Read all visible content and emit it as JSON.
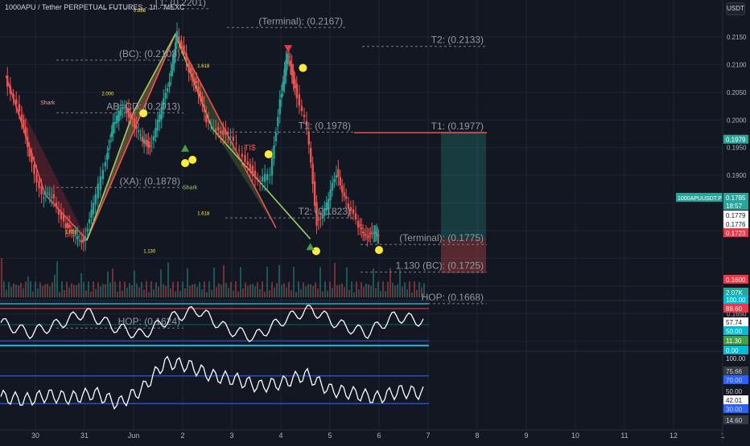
{
  "header": {
    "symbol_title": "1000APU / Tether PERPETUAL FUTURES · 1h · MEXC",
    "currency_label": "USDT"
  },
  "colors": {
    "bg": "#131722",
    "grid": "#1f2433",
    "axis_text": "#b2b5be",
    "up": "#26a69a",
    "down": "#ef5350",
    "harmonic_line_bull": "#9ccc65",
    "harmonic_line_bear": "#ef5350",
    "level_dash": "#787b86",
    "pattern_fill_red": "#f23645",
    "pattern_fill_green": "#8bc34a",
    "rsi_line": "#ffffff",
    "band_cyan": "#00bcd4",
    "band_red": "#f23645"
  },
  "chart_data": [
    {
      "type": "candlestick",
      "title": "1000APU / Tether PERPETUAL FUTURES · 1h · MEXC",
      "x_ticks": [
        "30",
        "31",
        "Jun",
        "2",
        "3",
        "4",
        "5",
        "6",
        "7",
        "8",
        "9",
        "10",
        "11",
        "12",
        "1"
      ],
      "y_ticks": [
        0.215,
        0.21,
        0.205,
        0.2,
        0.195,
        0.19,
        0.185,
        0.18,
        0.165
      ],
      "ylim": [
        0.158,
        0.2215
      ],
      "price_path": [
        [
          29.4,
          0.208
        ],
        [
          29.7,
          0.201
        ],
        [
          29.9,
          0.194
        ],
        [
          30.15,
          0.186
        ],
        [
          30.35,
          0.1865
        ],
        [
          30.6,
          0.1815
        ],
        [
          30.8,
          0.179
        ],
        [
          31.0,
          0.1783
        ],
        [
          31.2,
          0.1845
        ],
        [
          31.45,
          0.193
        ],
        [
          31.6,
          0.199
        ],
        [
          31.8,
          0.2025
        ],
        [
          32.0,
          0.2
        ],
        [
          32.2,
          0.196
        ],
        [
          32.35,
          0.1955
        ],
        [
          32.55,
          0.2005
        ],
        [
          32.75,
          0.2075
        ],
        [
          32.9,
          0.2155
        ],
        [
          33.15,
          0.209
        ],
        [
          33.3,
          0.2065
        ],
        [
          33.5,
          0.1995
        ],
        [
          33.75,
          0.1985
        ],
        [
          34.0,
          0.1965
        ],
        [
          34.3,
          0.193
        ],
        [
          34.55,
          0.1885
        ],
        [
          34.8,
          0.1905
        ],
        [
          35.0,
          0.2035
        ],
        [
          35.15,
          0.212
        ],
        [
          35.3,
          0.206
        ],
        [
          35.55,
          0.1985
        ],
        [
          35.75,
          0.1815
        ],
        [
          35.95,
          0.1845
        ],
        [
          36.15,
          0.1905
        ],
        [
          36.35,
          0.1855
        ],
        [
          36.6,
          0.1805
        ],
        [
          36.75,
          0.1795
        ],
        [
          36.9,
          0.179
        ],
        [
          37.0,
          0.1798
        ]
      ],
      "harmonics": [
        {
          "name": "Shark",
          "points": [
            [
              29.4,
              0.208
            ],
            [
              30.2,
              0.1865
            ],
            [
              31.05,
              0.1783
            ],
            [
              32.85,
              0.2155
            ],
            [
              34.9,
              0.1805
            ]
          ]
        },
        {
          "name": "Shark",
          "points": [
            [
              30.2,
              0.1865
            ],
            [
              31.05,
              0.1783
            ],
            [
              32.0,
              0.2015
            ],
            [
              33.15,
              0.2165
            ],
            [
              35.6,
              0.1785
            ]
          ]
        }
      ],
      "levels": [
        {
          "label": "T1: (0.2201)",
          "value": 0.2201
        },
        {
          "label": "(Terminal): (0.2167)",
          "value": 0.2167
        },
        {
          "label": "(BC): (0.2108)",
          "value": 0.2108
        },
        {
          "label": "T2: (0.2133)",
          "value": 0.2133
        },
        {
          "label": "AB=CD: (0.2013)",
          "value": 0.2013
        },
        {
          "label": "T1: (0.1978)",
          "value": 0.1978
        },
        {
          "label": "T1: (0.1977)",
          "value": 0.1977
        },
        {
          "label": "(XA): (0.1878)",
          "value": 0.1878
        },
        {
          "label": "T2: (0.1823)",
          "value": 0.1823
        },
        {
          "label": "(Terminal): (0.1775)",
          "value": 0.1775
        },
        {
          "label": "1.130 (BC): (0.1725)",
          "value": 0.1725
        },
        {
          "label": "HOP: (0.1668)",
          "value": 0.1668
        },
        {
          "label": "HOP: (0.1624)",
          "value": 0.1624
        }
      ],
      "ratio_labels": [
        "0.886",
        "2.000",
        "1.618",
        "1.618",
        "1.618",
        "1.130"
      ],
      "pattern_labels": [
        "Shark",
        "Shark",
        "TI$"
      ],
      "position": {
        "entry": 0.1785,
        "target": 0.1979,
        "stop": 0.1723
      },
      "price_badges": [
        {
          "text": "0.2150",
          "kind": "tick"
        },
        {
          "text": "0.2100",
          "kind": "tick"
        },
        {
          "text": "0.2050",
          "kind": "tick"
        },
        {
          "text": "0.2000",
          "kind": "tick"
        },
        {
          "text": "0.1979",
          "kind": "green"
        },
        {
          "text": "0.1950",
          "kind": "tick"
        },
        {
          "text": "0.1900",
          "kind": "tick"
        },
        {
          "text": "0.1850",
          "kind": "tick"
        },
        {
          "text": "0.1800",
          "kind": "tick"
        },
        {
          "text": "1000APUUSDT.P",
          "kind": "sym"
        },
        {
          "text": "0.1785",
          "kind": "green"
        },
        {
          "text": "18:57",
          "kind": "green"
        },
        {
          "text": "0.1779",
          "kind": "white"
        },
        {
          "text": "0.1776",
          "kind": "white"
        },
        {
          "text": "0.1723",
          "kind": "red"
        },
        {
          "text": "0.1650",
          "kind": "tick"
        },
        {
          "text": "0.1600",
          "kind": "red"
        }
      ]
    },
    {
      "type": "line",
      "title": "",
      "ylim": [
        0,
        100
      ],
      "bands": [
        11.3,
        88.6,
        0,
        100
      ],
      "badges": [
        "2.07K",
        "100.00",
        "88.60",
        "57.74",
        "50.00",
        "11.30",
        "0.00"
      ],
      "series": [
        {
          "values": [
            55,
            30,
            50,
            80,
            45,
            25,
            65,
            85,
            40,
            20,
            60,
            88,
            50,
            30,
            70,
            58
          ]
        }
      ]
    },
    {
      "type": "line",
      "title": "",
      "ylim": [
        0,
        100
      ],
      "levels": [
        70,
        30
      ],
      "badges": [
        "100.00",
        "75.66",
        "70.00",
        "50.00",
        "42.01",
        "30.00",
        "14.60"
      ],
      "series": [
        {
          "values": [
            40,
            35,
            42,
            38,
            45,
            30,
            50,
            90,
            85,
            70,
            65,
            55,
            60,
            72,
            50,
            45,
            38,
            48,
            45
          ]
        }
      ]
    }
  ]
}
